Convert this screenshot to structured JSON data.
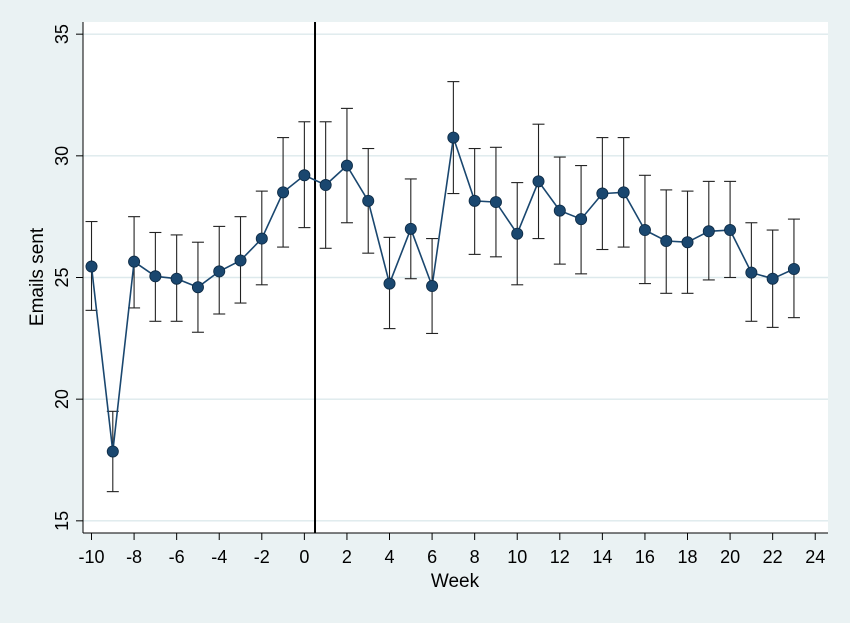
{
  "chart_data": {
    "type": "scatter",
    "title": "",
    "xlabel": "Week",
    "ylabel": "Emails sent",
    "xlim": [
      -10.4,
      24.6
    ],
    "ylim": [
      14.5,
      35.5
    ],
    "xticks": [
      -10,
      -8,
      -6,
      -4,
      -2,
      0,
      2,
      4,
      6,
      8,
      10,
      12,
      14,
      16,
      18,
      20,
      22,
      24
    ],
    "yticks": [
      15,
      20,
      25,
      30,
      35
    ],
    "grid": true,
    "reference_line_x": 0.5,
    "colors": {
      "background": "#eaf2f3",
      "plot_area": "#ffffff",
      "grid": "#dde9ec",
      "marker": "#1a476f",
      "line": "#1a476f",
      "error_bar": "#222222",
      "reference_line": "#000000"
    },
    "series": [
      {
        "x": [
          -10,
          -9,
          -8,
          -7,
          -6,
          -5,
          -4,
          -3,
          -2,
          -1,
          0,
          1,
          2,
          3,
          4,
          5,
          6,
          7,
          8,
          9,
          10,
          11,
          12,
          13,
          14,
          15,
          16,
          17,
          18,
          19,
          20,
          21,
          22,
          23
        ],
        "y": [
          25.45,
          17.85,
          25.65,
          25.05,
          24.95,
          24.6,
          25.25,
          25.7,
          26.6,
          28.5,
          29.2,
          28.8,
          29.6,
          28.15,
          24.75,
          27.0,
          24.65,
          30.75,
          28.15,
          28.1,
          26.8,
          28.95,
          27.75,
          27.4,
          28.45,
          28.5,
          26.95,
          26.5,
          26.45,
          26.9,
          26.95,
          25.2,
          24.95,
          25.35
        ],
        "lower": [
          23.65,
          16.2,
          23.75,
          23.2,
          23.2,
          22.75,
          23.5,
          23.95,
          24.7,
          26.25,
          27.05,
          26.2,
          27.25,
          26.0,
          22.9,
          24.95,
          22.7,
          28.45,
          25.95,
          25.85,
          24.7,
          26.6,
          25.55,
          25.15,
          26.15,
          26.25,
          24.75,
          24.35,
          24.35,
          24.9,
          25.0,
          23.2,
          22.95,
          23.35
        ],
        "upper": [
          27.3,
          19.5,
          27.5,
          26.85,
          26.75,
          26.45,
          27.1,
          27.5,
          28.55,
          30.75,
          31.4,
          31.4,
          31.95,
          30.3,
          26.65,
          29.05,
          26.6,
          33.05,
          30.3,
          30.35,
          28.9,
          31.3,
          29.95,
          29.6,
          30.75,
          30.75,
          29.2,
          28.6,
          28.55,
          28.95,
          28.95,
          27.25,
          26.95,
          27.4
        ]
      }
    ]
  }
}
